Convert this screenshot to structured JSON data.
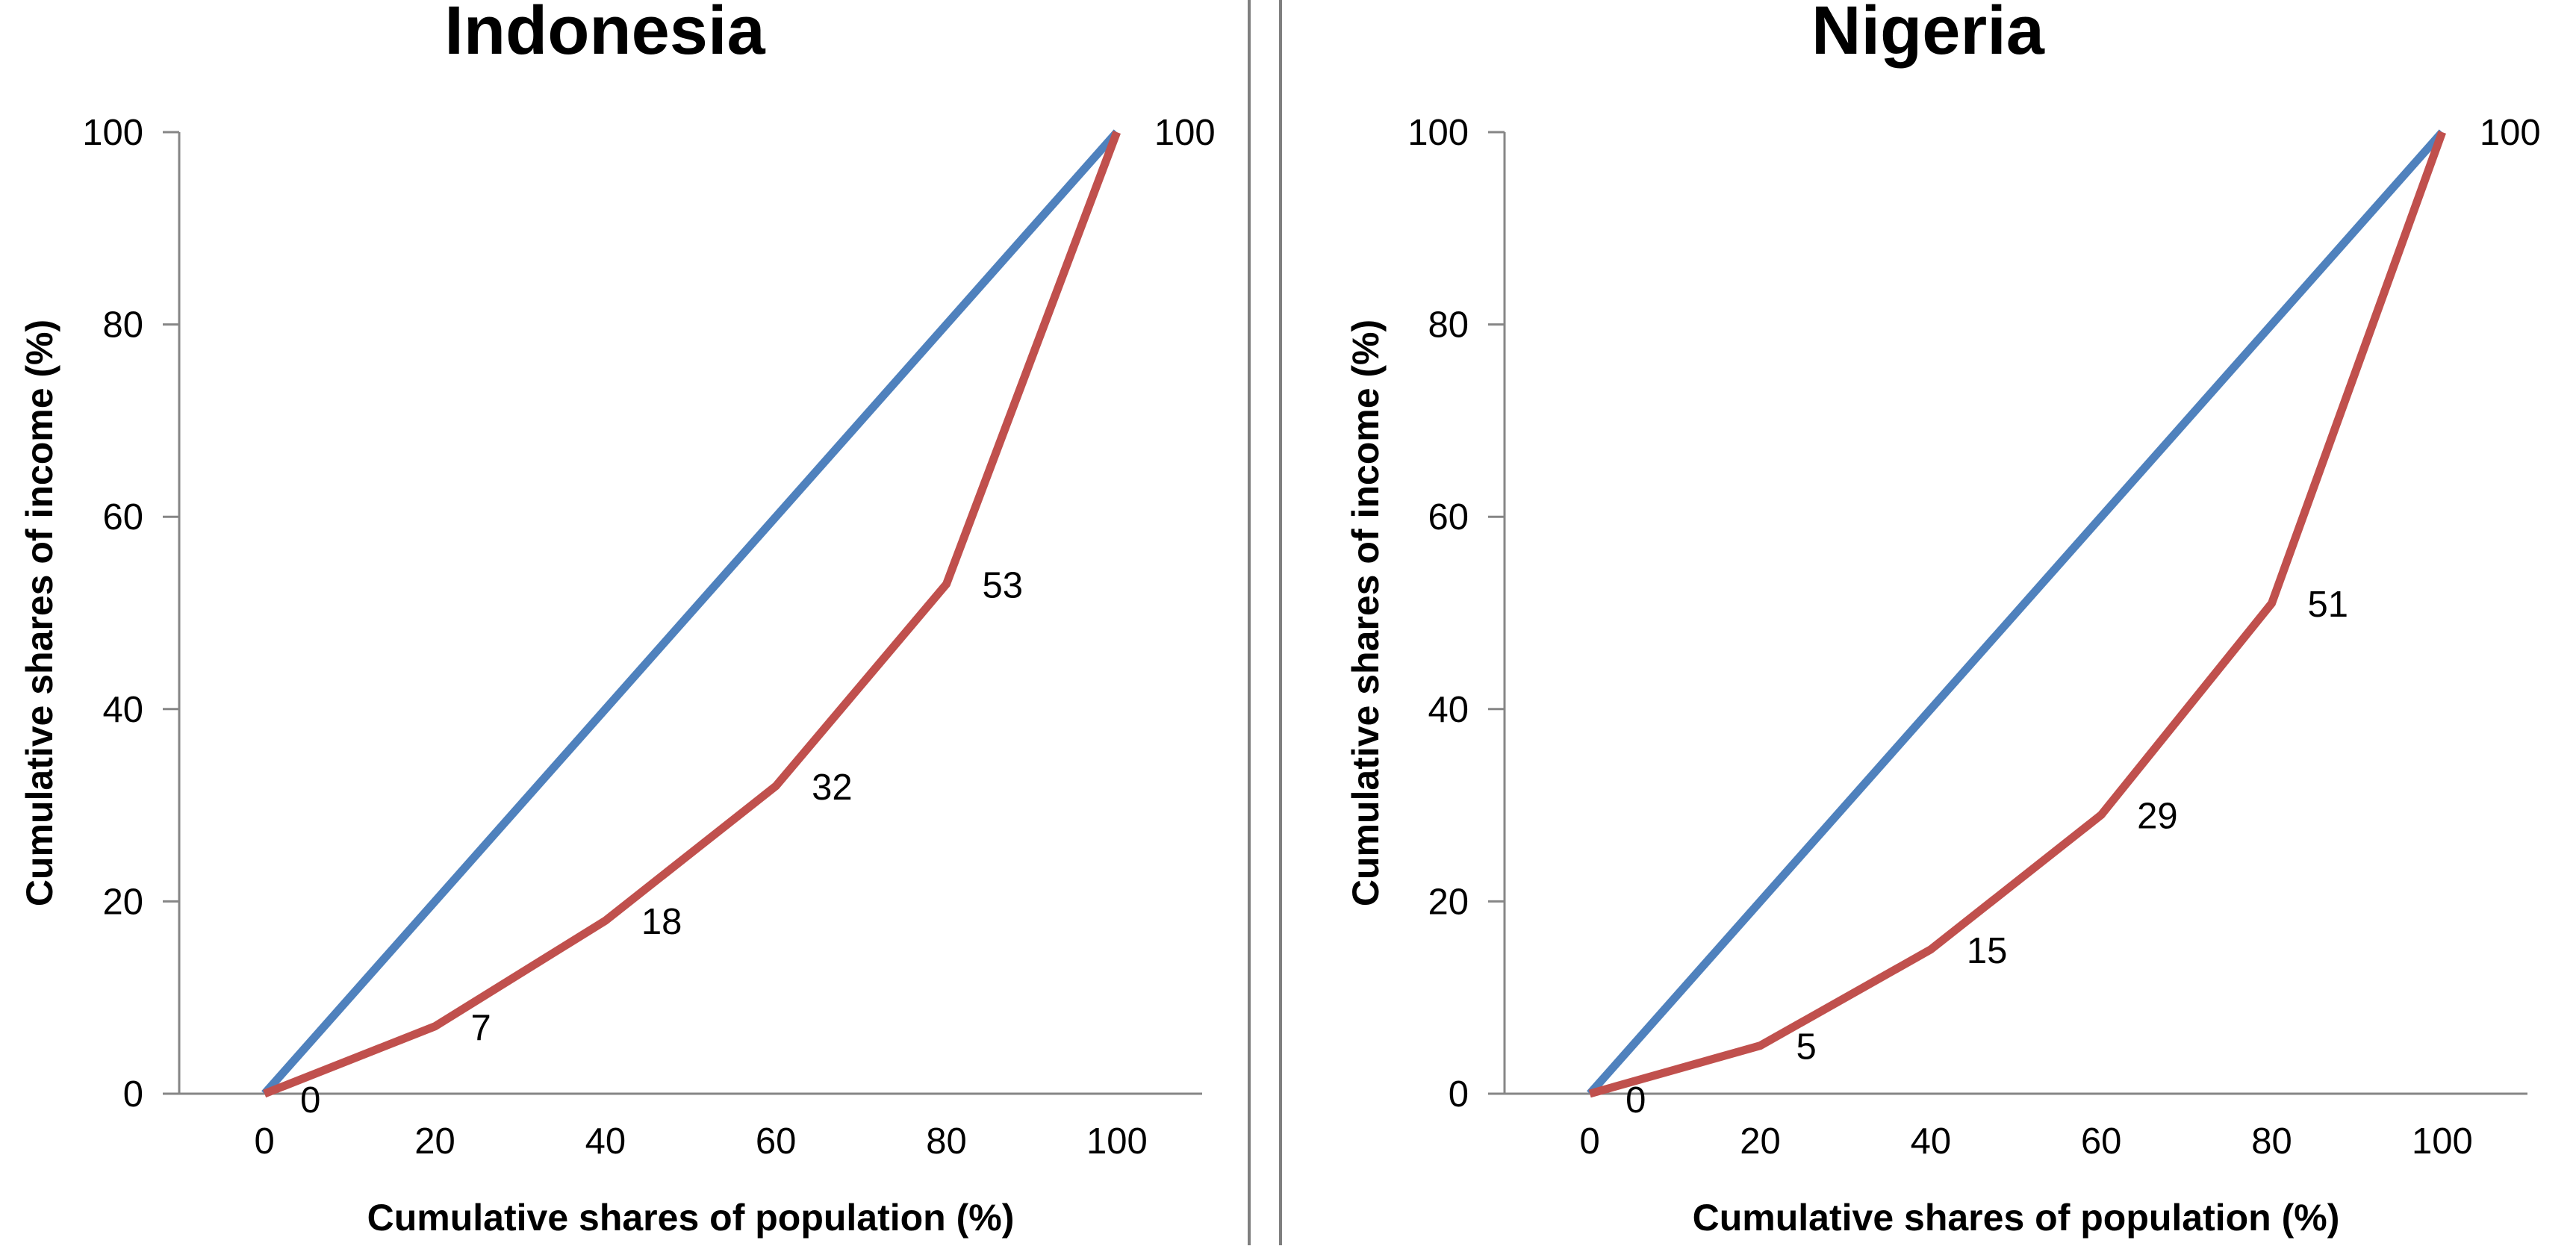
{
  "colors": {
    "equality_line": "#4F81BD",
    "lorenz_curve": "#C0504D",
    "axis": "#868686",
    "divider": "#7F7F7F",
    "text": "#000000"
  },
  "chart_data": [
    {
      "type": "line",
      "title": "Indonesia",
      "xlabel": "Cumulative shares of population (%)",
      "ylabel": "Cumulative shares of income (%)",
      "xlim": [
        -10,
        110
      ],
      "ylim": [
        0,
        100
      ],
      "x_ticks": [
        "0",
        "20",
        "40",
        "60",
        "80",
        "100"
      ],
      "y_ticks": [
        "0",
        "20",
        "40",
        "60",
        "80",
        "100"
      ],
      "grid": false,
      "legend": "none",
      "series": [
        {
          "x": [
            0,
            100
          ],
          "y": [
            0,
            100
          ]
        },
        {
          "x": [
            0,
            20,
            40,
            60,
            80,
            100
          ],
          "y": [
            0,
            7,
            18,
            32,
            53,
            100
          ],
          "data_labels": [
            "0",
            "7",
            "18",
            "32",
            "53",
            "100"
          ]
        }
      ]
    },
    {
      "type": "line",
      "title": "Nigeria",
      "xlabel": "Cumulative shares of population (%)",
      "ylabel": "Cumulative shares of income (%)",
      "xlim": [
        -10,
        110
      ],
      "ylim": [
        0,
        100
      ],
      "x_ticks": [
        "0",
        "20",
        "40",
        "60",
        "80",
        "100"
      ],
      "y_ticks": [
        "0",
        "20",
        "40",
        "60",
        "80",
        "100"
      ],
      "grid": false,
      "legend": "none",
      "series": [
        {
          "x": [
            0,
            100
          ],
          "y": [
            0,
            100
          ]
        },
        {
          "x": [
            0,
            20,
            40,
            60,
            80,
            100
          ],
          "y": [
            0,
            5,
            15,
            29,
            51,
            100
          ],
          "data_labels": [
            "0",
            "5",
            "15",
            "29",
            "51",
            "100"
          ]
        }
      ]
    }
  ]
}
